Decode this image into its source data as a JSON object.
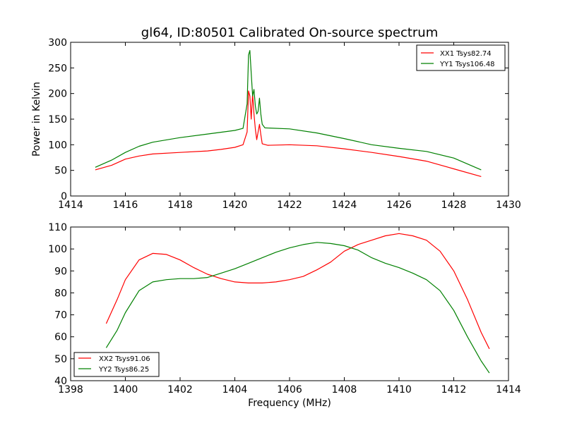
{
  "chart_data": [
    {
      "type": "line",
      "title": "gl64, ID:80501 Calibrated On-source spectrum",
      "xlabel": "",
      "ylabel": "Power in Kelvin",
      "xlim": [
        1414,
        1430
      ],
      "ylim": [
        0,
        300
      ],
      "xticks": [
        1414,
        1416,
        1418,
        1420,
        1422,
        1424,
        1426,
        1428,
        1430
      ],
      "yticks": [
        0,
        50,
        100,
        150,
        200,
        250,
        300
      ],
      "legend_position": "upper-right",
      "series": [
        {
          "name": "XX1 Tsys82.74",
          "color": "#ff0000",
          "points": [
            [
              1414.9,
              51
            ],
            [
              1415.5,
              60
            ],
            [
              1416,
              72
            ],
            [
              1416.5,
              78
            ],
            [
              1417,
              82
            ],
            [
              1418,
              85
            ],
            [
              1419,
              88
            ],
            [
              1419.5,
              91
            ],
            [
              1420,
              95
            ],
            [
              1420.3,
              100
            ],
            [
              1420.45,
              125
            ],
            [
              1420.5,
              205
            ],
            [
              1420.55,
              195
            ],
            [
              1420.6,
              150
            ],
            [
              1420.65,
              200
            ],
            [
              1420.7,
              160
            ],
            [
              1420.75,
              130
            ],
            [
              1420.8,
              110
            ],
            [
              1420.9,
              140
            ],
            [
              1420.95,
              120
            ],
            [
              1421,
              102
            ],
            [
              1421.2,
              99
            ],
            [
              1422,
              100
            ],
            [
              1423,
              98
            ],
            [
              1424,
              92
            ],
            [
              1425,
              85
            ],
            [
              1426,
              77
            ],
            [
              1427,
              68
            ],
            [
              1428,
              53
            ],
            [
              1429,
              38
            ]
          ]
        },
        {
          "name": "YY1 Tsys106.48",
          "color": "#008000",
          "points": [
            [
              1414.9,
              56
            ],
            [
              1415.5,
              70
            ],
            [
              1416,
              85
            ],
            [
              1416.5,
              97
            ],
            [
              1417,
              105
            ],
            [
              1418,
              114
            ],
            [
              1419,
              121
            ],
            [
              1420,
              128
            ],
            [
              1420.3,
              132
            ],
            [
              1420.45,
              180
            ],
            [
              1420.5,
              275
            ],
            [
              1420.55,
              284
            ],
            [
              1420.6,
              240
            ],
            [
              1420.65,
              195
            ],
            [
              1420.7,
              208
            ],
            [
              1420.75,
              175
            ],
            [
              1420.8,
              160
            ],
            [
              1420.85,
              165
            ],
            [
              1420.9,
              191
            ],
            [
              1420.95,
              160
            ],
            [
              1421,
              140
            ],
            [
              1421.1,
              133
            ],
            [
              1422,
              131
            ],
            [
              1423,
              123
            ],
            [
              1424,
              112
            ],
            [
              1425,
              100
            ],
            [
              1426,
              93
            ],
            [
              1427,
              87
            ],
            [
              1428,
              74
            ],
            [
              1429,
              51
            ]
          ]
        }
      ]
    },
    {
      "type": "line",
      "title": "",
      "xlabel": "Frequency (MHz)",
      "ylabel": "",
      "xlim": [
        1398,
        1414
      ],
      "ylim": [
        40,
        110
      ],
      "xticks": [
        1398,
        1400,
        1402,
        1404,
        1406,
        1408,
        1410,
        1412,
        1414
      ],
      "yticks": [
        40,
        50,
        60,
        70,
        80,
        90,
        100,
        110
      ],
      "legend_position": "lower-left",
      "series": [
        {
          "name": "XX2 Tsys91.06",
          "color": "#ff0000",
          "points": [
            [
              1399.3,
              66
            ],
            [
              1399.7,
              77
            ],
            [
              1400,
              86
            ],
            [
              1400.5,
              95
            ],
            [
              1401,
              98
            ],
            [
              1401.5,
              97.5
            ],
            [
              1402,
              95
            ],
            [
              1402.5,
              91.5
            ],
            [
              1403,
              88.5
            ],
            [
              1403.5,
              86.5
            ],
            [
              1404,
              85
            ],
            [
              1404.5,
              84.5
            ],
            [
              1405,
              84.5
            ],
            [
              1405.5,
              85
            ],
            [
              1406,
              86
            ],
            [
              1406.5,
              87.5
            ],
            [
              1407,
              90.5
            ],
            [
              1407.5,
              94
            ],
            [
              1408,
              99
            ],
            [
              1408.5,
              102
            ],
            [
              1409,
              104
            ],
            [
              1409.5,
              106
            ],
            [
              1410,
              107
            ],
            [
              1410.5,
              106
            ],
            [
              1411,
              104
            ],
            [
              1411.5,
              99
            ],
            [
              1412,
              90
            ],
            [
              1412.5,
              77
            ],
            [
              1413,
              62
            ],
            [
              1413.3,
              54.5
            ]
          ]
        },
        {
          "name": "YY2 Tsys86.25",
          "color": "#008000",
          "points": [
            [
              1399.3,
              55
            ],
            [
              1399.7,
              63
            ],
            [
              1400,
              71
            ],
            [
              1400.5,
              81
            ],
            [
              1401,
              85
            ],
            [
              1401.5,
              86
            ],
            [
              1402,
              86.5
            ],
            [
              1402.5,
              86.5
            ],
            [
              1403,
              87
            ],
            [
              1403.5,
              89
            ],
            [
              1404,
              91
            ],
            [
              1404.5,
              93.5
            ],
            [
              1405,
              96
            ],
            [
              1405.5,
              98.5
            ],
            [
              1406,
              100.5
            ],
            [
              1406.5,
              102
            ],
            [
              1407,
              103
            ],
            [
              1407.5,
              102.5
            ],
            [
              1408,
              101.5
            ],
            [
              1408.5,
              99.5
            ],
            [
              1409,
              96
            ],
            [
              1409.5,
              93.5
            ],
            [
              1410,
              91.5
            ],
            [
              1410.5,
              89
            ],
            [
              1411,
              86
            ],
            [
              1411.5,
              81
            ],
            [
              1412,
              72
            ],
            [
              1412.5,
              60
            ],
            [
              1413,
              49
            ],
            [
              1413.3,
              43.5
            ]
          ]
        }
      ]
    }
  ]
}
